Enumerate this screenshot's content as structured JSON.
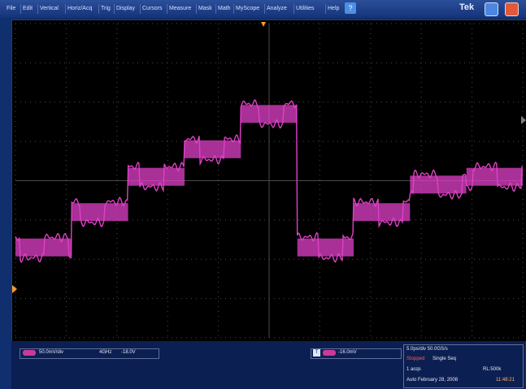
{
  "menu": {
    "items": [
      "File",
      "Edit",
      "Vertical",
      "Horiz/Acq",
      "Trig",
      "Display",
      "Cursors",
      "Measure",
      "Mask",
      "Math",
      "MyScope",
      "Analyze",
      "Utilities",
      "Help"
    ],
    "help_icon": "help-icon"
  },
  "brand": "Tek",
  "window_buttons": {
    "minimize_icon": "window-icon",
    "close_icon": "close-icon"
  },
  "colors": {
    "trace": "#e040c8",
    "grid": "#4a4a4a",
    "accent": "#ff9a2a",
    "window_bg": "#0f2f6e"
  },
  "waveform": {
    "channel": 1,
    "levels_divisions": [
      -1.7,
      -0.8,
      0.1,
      0.8,
      1.7,
      -1.7,
      -0.8,
      -0.1,
      0.1
    ],
    "y_range_divisions": [
      -4,
      4
    ],
    "x_divisions": 10
  },
  "status": {
    "ch1_scale": "50.0mV/div",
    "ch1_bw": "4GHz",
    "ch1_offset": "-18.0V",
    "trigger_badge": "T",
    "trigger_level": "-16.0mV",
    "acq_rate": "5.0ps/div  50.0GS/s",
    "acq_mode": "RL:500k",
    "state": "Stopped",
    "state_detail": "Single Seq",
    "acquisitions": "1 acqs",
    "rl": "RL:500k",
    "date": "Auto   February 28, 2008",
    "time": "11:48:21"
  }
}
